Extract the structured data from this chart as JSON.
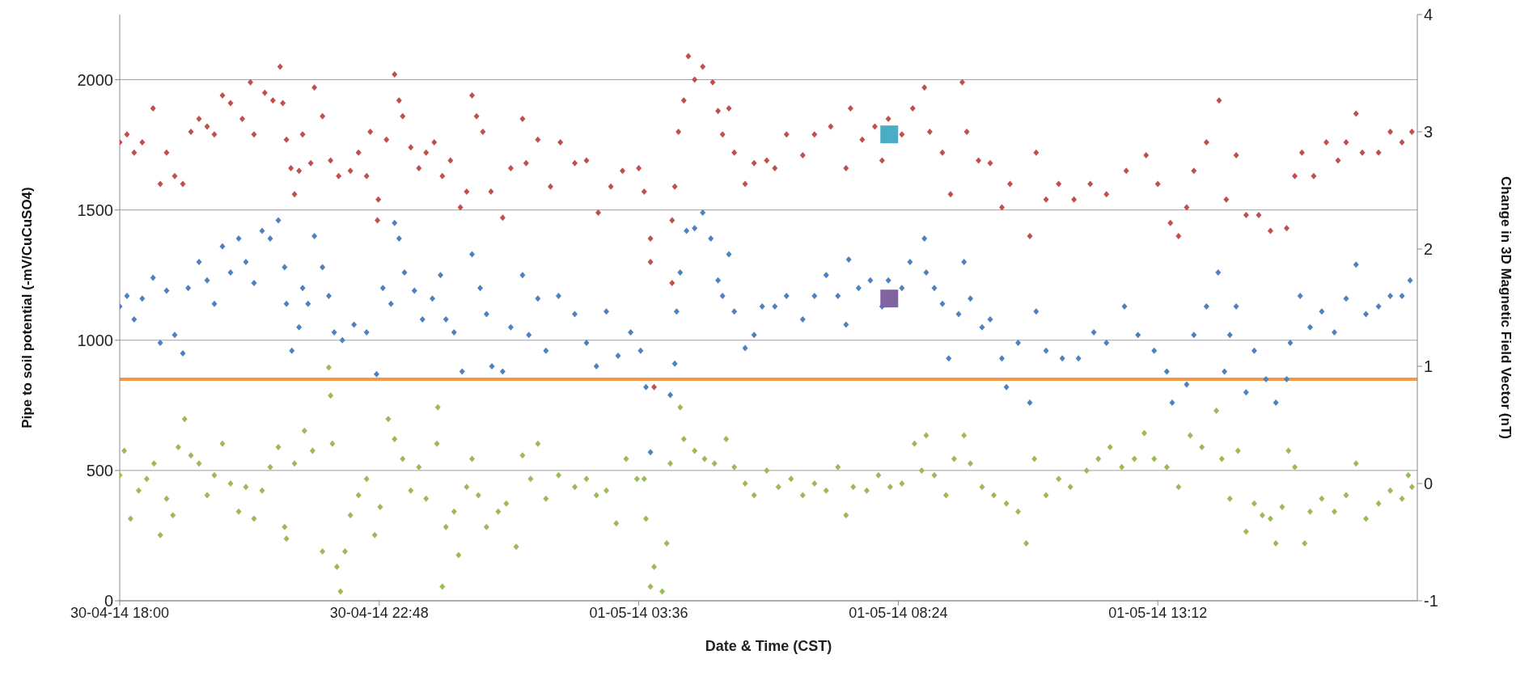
{
  "chart_data": {
    "type": "scatter",
    "xlabel": "Date & Time (CST)",
    "ylabel": "Pipe to soil potential (-mV/CuCuSO4)",
    "y2label": "Change in 3D Magnetic Field Vector (nT)",
    "xlim": [
      "--04-30T18:00",
      "--05-01T18:00"
    ],
    "xticks": [
      {
        "value": "--04-30T18:00",
        "label": "30-04-14 18:00"
      },
      {
        "value": "--04-30T22:48",
        "label": "30-04-14 22:48"
      },
      {
        "value": "--05-01T03:36",
        "label": "01-05-14 03:36"
      },
      {
        "value": "--05-01T08:24",
        "label": "01-05-14 08:24"
      },
      {
        "value": "--05-01T13:12",
        "label": "01-05-14 13:12"
      }
    ],
    "ylim": [
      0,
      2250
    ],
    "yticks": [
      0,
      500,
      1000,
      1500,
      2000
    ],
    "y2lim": [
      -1,
      4
    ],
    "y2ticks": [
      -1,
      0,
      1,
      2,
      3,
      4
    ],
    "grid": "y",
    "legend": false,
    "marker": "diamond",
    "ref_lines": [
      {
        "axis": "y",
        "value": 850,
        "color": "#f79646"
      }
    ],
    "series": [
      {
        "color": "#c0504d",
        "x": [
          "--04-30T18:00",
          "--04-30T18:08",
          "--04-30T18:16",
          "--04-30T18:25",
          "--04-30T18:37",
          "--04-30T18:45",
          "--04-30T18:52",
          "--04-30T19:01",
          "--04-30T19:10",
          "--04-30T19:19",
          "--04-30T19:28",
          "--04-30T19:37",
          "--04-30T19:45",
          "--04-30T19:54",
          "--04-30T20:03",
          "--04-30T20:16",
          "--04-30T20:25",
          "--04-30T20:29",
          "--04-30T20:41",
          "--04-30T20:50",
          "--04-30T20:58",
          "--04-30T21:01",
          "--04-30T21:05",
          "--04-30T21:10",
          "--04-30T21:14",
          "--04-30T21:19",
          "--04-30T21:23",
          "--04-30T21:32",
          "--04-30T21:36",
          "--04-30T21:45",
          "--04-30T21:54",
          "--04-30T22:03",
          "--04-30T22:16",
          "--04-30T22:25",
          "--04-30T22:34",
          "--04-30T22:38",
          "--04-30T22:46",
          "--04-30T22:47",
          "--04-30T22:56",
          "--04-30T23:05",
          "--04-30T23:10",
          "--04-30T23:14",
          "--04-30T23:23",
          "--04-30T23:32",
          "--04-30T23:40",
          "--04-30T23:49",
          "--04-30T23:58",
          "--05-01T00:07",
          "--05-01T00:18",
          "--05-01T00:25",
          "--05-01T00:31",
          "--05-01T00:36",
          "--05-01T00:43",
          "--05-01T00:52",
          "--05-01T01:05",
          "--05-01T01:14",
          "--05-01T01:27",
          "--05-01T01:31",
          "--05-01T01:44",
          "--05-01T01:58",
          "--05-01T02:09",
          "--05-01T02:25",
          "--05-01T02:38",
          "--05-01T02:51",
          "--05-01T03:05",
          "--05-01T03:18",
          "--05-01T03:36",
          "--05-01T03:42",
          "--05-01T03:49",
          "--05-01T03:49",
          "--05-01T03:53",
          "--05-01T04:13",
          "--05-01T04:13",
          "--05-01T04:16",
          "--05-01T04:20",
          "--05-01T04:26",
          "--05-01T04:31",
          "--05-01T04:38",
          "--05-01T04:47",
          "--05-01T04:58",
          "--05-01T05:04",
          "--05-01T05:09",
          "--05-01T05:16",
          "--05-01T05:22",
          "--05-01T05:34",
          "--05-01T05:44",
          "--05-01T05:58",
          "--05-01T06:07",
          "--05-01T06:20",
          "--05-01T06:38",
          "--05-01T06:51",
          "--05-01T07:09",
          "--05-01T07:26",
          "--05-01T07:31",
          "--05-01T07:44",
          "--05-01T07:58",
          "--05-01T08:06",
          "--05-01T08:13",
          "--05-01T08:28",
          "--05-01T08:40",
          "--05-01T08:53",
          "--05-01T08:59",
          "--05-01T09:13",
          "--05-01T09:22",
          "--05-01T09:35",
          "--05-01T09:40",
          "--05-01T09:53",
          "--05-01T10:06",
          "--05-01T10:19",
          "--05-01T10:28",
          "--05-01T10:50",
          "--05-01T10:57",
          "--05-01T11:08",
          "--05-01T11:22",
          "--05-01T11:39",
          "--05-01T11:57",
          "--05-01T12:15",
          "--05-01T12:37",
          "--05-01T12:59",
          "--05-01T13:12",
          "--05-01T13:26",
          "--05-01T13:35",
          "--05-01T13:44",
          "--05-01T13:52",
          "--05-01T14:06",
          "--05-01T14:20",
          "--05-01T14:28",
          "--05-01T14:39",
          "--05-01T14:50",
          "--05-01T15:04",
          "--05-01T15:17",
          "--05-01T15:35",
          "--05-01T15:44",
          "--05-01T15:52",
          "--05-01T16:05",
          "--05-01T16:19",
          "--05-01T16:32",
          "--05-01T16:41",
          "--05-01T16:52",
          "--05-01T16:59",
          "--05-01T17:17",
          "--05-01T17:30",
          "--05-01T17:43",
          "--05-01T17:54"
        ],
        "values": [
          1760,
          1790,
          1720,
          1760,
          1890,
          1600,
          1720,
          1630,
          1600,
          1800,
          1850,
          1820,
          1790,
          1940,
          1910,
          1850,
          1990,
          1790,
          1950,
          1920,
          2050,
          1910,
          1770,
          1660,
          1560,
          1650,
          1790,
          1680,
          1970,
          1860,
          1690,
          1630,
          1650,
          1720,
          1630,
          1800,
          1460,
          1540,
          1770,
          2020,
          1920,
          1860,
          1740,
          1660,
          1720,
          1760,
          1630,
          1690,
          1510,
          1570,
          1940,
          1860,
          1800,
          1570,
          1470,
          1660,
          1850,
          1680,
          1770,
          1590,
          1760,
          1680,
          1690,
          1490,
          1590,
          1650,
          1660,
          1570,
          1390,
          1300,
          820,
          1460,
          1220,
          1590,
          1800,
          1920,
          2090,
          2000,
          2050,
          1990,
          1880,
          1790,
          1890,
          1720,
          1600,
          1680,
          1690,
          1660,
          1790,
          1710,
          1790,
          1820,
          1660,
          1890,
          1770,
          1820,
          1690,
          1850,
          1790,
          1890,
          1970,
          1800,
          1720,
          1560,
          1990,
          1800,
          1690,
          1680,
          1510,
          1600,
          1400,
          1720,
          1540,
          1600,
          1540,
          1600,
          1560,
          1650,
          1710,
          1600,
          1450,
          1400,
          1510,
          1650,
          1760,
          1920,
          1540,
          1710,
          1480,
          1480,
          1420,
          1430,
          1630,
          1720,
          1630,
          1760,
          1690,
          1760,
          1870,
          1720,
          1720,
          1800,
          1760,
          1800
        ]
      },
      {
        "color": "#4f81bd",
        "x": [
          "--04-30T18:00",
          "--04-30T18:08",
          "--04-30T18:16",
          "--04-30T18:25",
          "--04-30T18:37",
          "--04-30T18:45",
          "--04-30T18:52",
          "--04-30T19:01",
          "--04-30T19:10",
          "--04-30T19:16",
          "--04-30T19:28",
          "--04-30T19:37",
          "--04-30T19:45",
          "--04-30T19:54",
          "--04-30T20:03",
          "--04-30T20:12",
          "--04-30T20:20",
          "--04-30T20:29",
          "--04-30T20:38",
          "--04-30T20:47",
          "--04-30T20:56",
          "--04-30T21:03",
          "--04-30T21:05",
          "--04-30T21:11",
          "--04-30T21:19",
          "--04-30T21:23",
          "--04-30T21:29",
          "--04-30T21:36",
          "--04-30T21:45",
          "--04-30T21:52",
          "--04-30T21:58",
          "--04-30T22:07",
          "--04-30T22:20",
          "--04-30T22:34",
          "--04-30T22:45",
          "--04-30T22:52",
          "--04-30T23:01",
          "--04-30T23:05",
          "--04-30T23:10",
          "--04-30T23:16",
          "--04-30T23:27",
          "--04-30T23:36",
          "--04-30T23:47",
          "--04-30T23:56",
          "--05-01T00:02",
          "--05-01T00:11",
          "--05-01T00:20",
          "--05-01T00:31",
          "--05-01T00:40",
          "--05-01T00:47",
          "--05-01T00:53",
          "--05-01T01:05",
          "--05-01T01:14",
          "--05-01T01:27",
          "--05-01T01:34",
          "--05-01T01:44",
          "--05-01T01:53",
          "--05-01T02:07",
          "--05-01T02:25",
          "--05-01T02:38",
          "--05-01T02:49",
          "--05-01T03:00",
          "--05-01T03:13",
          "--05-01T03:27",
          "--05-01T03:38",
          "--05-01T03:44",
          "--05-01T03:49",
          "--05-01T04:11",
          "--05-01T04:16",
          "--05-01T04:18",
          "--05-01T04:22",
          "--05-01T04:29",
          "--05-01T04:38",
          "--05-01T04:47",
          "--05-01T04:56",
          "--05-01T05:04",
          "--05-01T05:09",
          "--05-01T05:16",
          "--05-01T05:22",
          "--05-01T05:34",
          "--05-01T05:44",
          "--05-01T05:53",
          "--05-01T06:07",
          "--05-01T06:20",
          "--05-01T06:38",
          "--05-01T06:51",
          "--05-01T07:04",
          "--05-01T07:17",
          "--05-01T07:26",
          "--05-01T07:29",
          "--05-01T07:40",
          "--05-01T07:53",
          "--05-01T08:06",
          "--05-01T08:13",
          "--05-01T08:28",
          "--05-01T08:37",
          "--05-01T08:53",
          "--05-01T08:55",
          "--05-01T09:04",
          "--05-01T09:13",
          "--05-01T09:20",
          "--05-01T09:31",
          "--05-01T09:37",
          "--05-01T09:44",
          "--05-01T09:57",
          "--05-01T10:06",
          "--05-01T10:19",
          "--05-01T10:24",
          "--05-01T10:37",
          "--05-01T10:50",
          "--05-01T10:57",
          "--05-01T11:08",
          "--05-01T11:26",
          "--05-01T11:44",
          "--05-01T12:01",
          "--05-01T12:15",
          "--05-01T12:35",
          "--05-01T12:50",
          "--05-01T13:08",
          "--05-01T13:22",
          "--05-01T13:28",
          "--05-01T13:44",
          "--05-01T13:52",
          "--05-01T14:06",
          "--05-01T14:19",
          "--05-01T14:26",
          "--05-01T14:32",
          "--05-01T14:39",
          "--05-01T14:50",
          "--05-01T14:59",
          "--05-01T15:12",
          "--05-01T15:23",
          "--05-01T15:35",
          "--05-01T15:39",
          "--05-01T15:50",
          "--05-01T16:01",
          "--05-01T16:14",
          "--05-01T16:28",
          "--05-01T16:41",
          "--05-01T16:52",
          "--05-01T17:03",
          "--05-01T17:17",
          "--05-01T17:30",
          "--05-01T17:43",
          "--05-01T17:52"
        ],
        "values": [
          1130,
          1170,
          1080,
          1160,
          1240,
          990,
          1190,
          1020,
          950,
          1200,
          1300,
          1230,
          1140,
          1360,
          1260,
          1390,
          1300,
          1220,
          1420,
          1390,
          1460,
          1280,
          1140,
          960,
          1050,
          1200,
          1140,
          1400,
          1280,
          1170,
          1030,
          1000,
          1060,
          1030,
          870,
          1200,
          1140,
          1450,
          1390,
          1260,
          1190,
          1080,
          1160,
          1250,
          1080,
          1030,
          880,
          1330,
          1200,
          1100,
          900,
          880,
          1050,
          1250,
          1020,
          1160,
          960,
          1170,
          1100,
          990,
          900,
          1110,
          940,
          1030,
          960,
          820,
          570,
          790,
          910,
          1110,
          1260,
          1420,
          1430,
          1490,
          1390,
          1230,
          1170,
          1330,
          1110,
          970,
          1020,
          1130,
          1130,
          1170,
          1080,
          1170,
          1250,
          1170,
          1060,
          1310,
          1200,
          1230,
          1130,
          1230,
          1200,
          1300,
          1390,
          1260,
          1200,
          1140,
          930,
          1100,
          1300,
          1160,
          1050,
          1080,
          930,
          820,
          990,
          760,
          1110,
          960,
          930,
          930,
          1030,
          990,
          1130,
          1020,
          960,
          880,
          760,
          830,
          1020,
          1130,
          1260,
          880,
          1020,
          1130,
          800,
          960,
          850,
          760,
          850,
          990,
          1170,
          1050,
          1110,
          1030,
          1160,
          1290,
          1100,
          1130,
          1170,
          1170,
          1230
        ]
      },
      {
        "color": "#9bbb59",
        "axis": "y2",
        "x": [
          "--04-30T18:00",
          "--04-30T18:05",
          "--04-30T18:12",
          "--04-30T18:21",
          "--04-30T18:30",
          "--04-30T18:38",
          "--04-30T18:45",
          "--04-30T18:52",
          "--04-30T18:59",
          "--04-30T19:05",
          "--04-30T19:12",
          "--04-30T19:19",
          "--04-30T19:28",
          "--04-30T19:37",
          "--04-30T19:45",
          "--04-30T19:54",
          "--04-30T20:03",
          "--04-30T20:12",
          "--04-30T20:20",
          "--04-30T20:29",
          "--04-30T20:38",
          "--04-30T20:47",
          "--04-30T20:56",
          "--04-30T21:03",
          "--04-30T21:05",
          "--04-30T21:14",
          "--04-30T21:25",
          "--04-30T21:34",
          "--04-30T21:45",
          "--04-30T21:52",
          "--04-30T21:54",
          "--04-30T21:56",
          "--04-30T22:01",
          "--04-30T22:05",
          "--04-30T22:10",
          "--04-30T22:16",
          "--04-30T22:25",
          "--04-30T22:34",
          "--04-30T22:43",
          "--04-30T22:49",
          "--04-30T22:58",
          "--04-30T23:05",
          "--04-30T23:14",
          "--04-30T23:23",
          "--04-30T23:32",
          "--04-30T23:40",
          "--04-30T23:52",
          "--04-30T23:53",
          "--04-30T23:58",
          "--05-01T00:02",
          "--05-01T00:11",
          "--05-01T00:16",
          "--05-01T00:25",
          "--05-01T00:31",
          "--05-01T00:38",
          "--05-01T00:47",
          "--05-01T01:00",
          "--05-01T01:09",
          "--05-01T01:20",
          "--05-01T01:27",
          "--05-01T01:36",
          "--05-01T01:44",
          "--05-01T01:53",
          "--05-01T02:07",
          "--05-01T02:25",
          "--05-01T02:38",
          "--05-01T02:49",
          "--05-01T03:00",
          "--05-01T03:11",
          "--05-01T03:22",
          "--05-01T03:34",
          "--05-01T03:42",
          "--05-01T03:44",
          "--05-01T03:49",
          "--05-01T03:53",
          "--05-01T04:02",
          "--05-01T04:07",
          "--05-01T04:11",
          "--05-01T04:22",
          "--05-01T04:26",
          "--05-01T04:38",
          "--05-01T04:49",
          "--05-01T05:00",
          "--05-01T05:13",
          "--05-01T05:22",
          "--05-01T05:34",
          "--05-01T05:44",
          "--05-01T05:58",
          "--05-01T06:11",
          "--05-01T06:25",
          "--05-01T06:38",
          "--05-01T06:51",
          "--05-01T07:04",
          "--05-01T07:17",
          "--05-01T07:26",
          "--05-01T07:34",
          "--05-01T07:49",
          "--05-01T08:02",
          "--05-01T08:15",
          "--05-01T08:28",
          "--05-01T08:42",
          "--05-01T08:50",
          "--05-01T08:55",
          "--05-01T09:04",
          "--05-01T09:17",
          "--05-01T09:26",
          "--05-01T09:37",
          "--05-01T09:44",
          "--05-01T09:57",
          "--05-01T10:10",
          "--05-01T10:24",
          "--05-01T10:37",
          "--05-01T10:46",
          "--05-01T10:55",
          "--05-01T11:08",
          "--05-01T11:22",
          "--05-01T11:35",
          "--05-01T11:53",
          "--05-01T12:06",
          "--05-01T12:19",
          "--05-01T12:32",
          "--05-01T12:46",
          "--05-01T12:57",
          "--05-01T13:08",
          "--05-01T13:22",
          "--05-01T13:35",
          "--05-01T13:48",
          "--05-01T14:01",
          "--05-01T14:17",
          "--05-01T14:23",
          "--05-01T14:32",
          "--05-01T14:41",
          "--05-01T14:50",
          "--05-01T14:59",
          "--05-01T15:08",
          "--05-01T15:17",
          "--05-01T15:23",
          "--05-01T15:30",
          "--05-01T15:37",
          "--05-01T15:44",
          "--05-01T15:55",
          "--05-01T16:01",
          "--05-01T16:14",
          "--05-01T16:28",
          "--05-01T16:41",
          "--05-01T16:52",
          "--05-01T17:03",
          "--05-01T17:17",
          "--05-01T17:30",
          "--05-01T17:43",
          "--05-01T17:50",
          "--05-01T17:54"
        ],
        "values": [
          0.07,
          0.28,
          -0.3,
          -0.06,
          0.04,
          0.17,
          -0.44,
          -0.13,
          -0.27,
          0.31,
          0.55,
          0.24,
          0.17,
          -0.1,
          0.07,
          0.34,
          0.0,
          -0.24,
          -0.03,
          -0.3,
          -0.06,
          0.14,
          0.31,
          -0.37,
          -0.47,
          0.17,
          0.45,
          0.28,
          -0.58,
          0.99,
          0.75,
          0.34,
          -0.71,
          -0.92,
          -0.58,
          -0.27,
          -0.1,
          0.04,
          -0.44,
          -0.2,
          0.55,
          0.38,
          0.21,
          -0.06,
          0.14,
          -0.13,
          0.34,
          0.65,
          -0.88,
          -0.37,
          -0.24,
          -0.61,
          -0.03,
          0.21,
          -0.1,
          -0.37,
          -0.24,
          -0.17,
          -0.54,
          0.24,
          0.04,
          0.34,
          -0.13,
          0.07,
          -0.03,
          0.04,
          -0.1,
          -0.06,
          -0.34,
          0.21,
          0.04,
          0.04,
          -0.3,
          -0.88,
          -0.71,
          -0.92,
          -0.51,
          0.17,
          0.65,
          0.38,
          0.28,
          0.21,
          0.17,
          0.38,
          0.14,
          0.0,
          -0.1,
          0.11,
          -0.03,
          0.04,
          -0.1,
          0.0,
          -0.06,
          0.14,
          -0.27,
          -0.03,
          -0.06,
          0.07,
          -0.03,
          0.0,
          0.34,
          0.11,
          0.41,
          0.07,
          -0.1,
          0.21,
          0.41,
          0.17,
          -0.03,
          -0.1,
          -0.17,
          -0.24,
          -0.51,
          0.21,
          -0.1,
          0.04,
          -0.03,
          0.11,
          0.21,
          0.31,
          0.14,
          0.21,
          0.43,
          0.21,
          0.14,
          -0.03,
          0.41,
          0.31,
          0.62,
          0.21,
          -0.13,
          0.28,
          -0.41,
          -0.17,
          -0.27,
          -0.3,
          -0.51,
          -0.2,
          0.28,
          0.14,
          -0.51,
          -0.24,
          -0.13,
          -0.24,
          -0.1,
          0.17,
          -0.3,
          -0.17,
          -0.06,
          -0.13,
          0.07,
          -0.03
        ]
      },
      {
        "color": "#4bacc6",
        "marker": "square",
        "x": [
          "--05-01T08:14"
        ],
        "values": [
          1790
        ]
      },
      {
        "color": "#8064a2",
        "marker": "square",
        "x": [
          "--05-01T08:14"
        ],
        "values": [
          1160
        ]
      }
    ]
  }
}
